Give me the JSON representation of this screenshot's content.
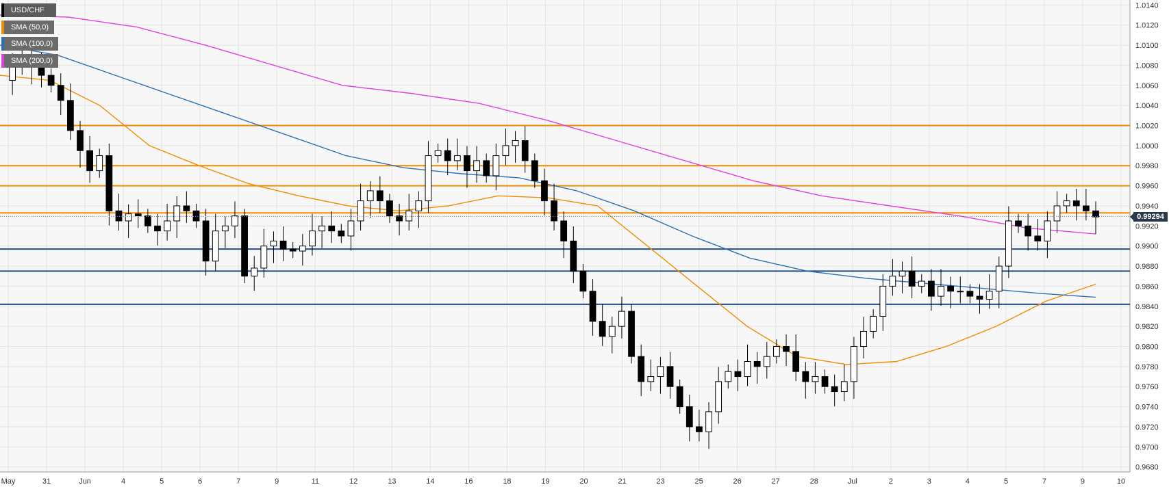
{
  "legend": {
    "symbol": "USD/CHF",
    "indicators": [
      {
        "label": "SMA (50,0)",
        "color": "#f28c00"
      },
      {
        "label": "SMA (100,0)",
        "color": "#2f6fb0"
      },
      {
        "label": "SMA (200,0)",
        "color": "#e040e0"
      }
    ]
  },
  "price_tag": "0.99294",
  "chart_data": {
    "type": "candlestick",
    "symbol": "USD/CHF",
    "ylim": [
      0.9675,
      1.0145
    ],
    "y_ticks": [
      "1.0140",
      "1.0120",
      "1.0100",
      "1.0080",
      "1.0060",
      "1.0040",
      "1.0020",
      "1.0000",
      "0.9980",
      "0.9960",
      "0.9940",
      "0.9920",
      "0.9900",
      "0.9880",
      "0.9860",
      "0.9840",
      "0.9820",
      "0.9800",
      "0.9780",
      "0.9760",
      "0.9740",
      "0.9720",
      "0.9700",
      "0.9680"
    ],
    "x_labels": [
      "May",
      "31",
      "Jun",
      "4",
      "5",
      "6",
      "7",
      "9",
      "11",
      "12",
      "13",
      "14",
      "16",
      "18",
      "19",
      "20",
      "21",
      "23",
      "25",
      "26",
      "27",
      "28",
      "Jul",
      "2",
      "3",
      "4",
      "5",
      "7",
      "9",
      "10"
    ],
    "grid": true,
    "horizontal_levels": {
      "resistance": [
        1.002,
        0.998,
        0.996,
        0.9933
      ],
      "support": [
        0.9897,
        0.9875,
        0.9842
      ],
      "resistance_color": "#f28c00",
      "support_color": "#1f4e8c"
    },
    "current_price": 0.99294,
    "series": [
      {
        "name": "USD/CHF",
        "kind": "ohlc",
        "close_path": [
          1.0065,
          1.008,
          1.0085,
          1.0078,
          1.007,
          1.006,
          1.0045,
          1.0015,
          0.9995,
          0.9975,
          0.999,
          0.9935,
          0.9925,
          0.9932,
          0.993,
          0.992,
          0.9915,
          0.9925,
          0.994,
          0.9935,
          0.9925,
          0.9885,
          0.9915,
          0.992,
          0.993,
          0.987,
          0.9878,
          0.99,
          0.9905,
          0.9897,
          0.9895,
          0.99,
          0.9915,
          0.992,
          0.9915,
          0.991,
          0.9925,
          0.9945,
          0.9955,
          0.9945,
          0.993,
          0.9925,
          0.9935,
          0.9945,
          0.999,
          0.9995,
          0.9985,
          0.999,
          0.9975,
          0.9985,
          0.997,
          0.999,
          1.0,
          1.0005,
          0.9985,
          0.9965,
          0.9945,
          0.9925,
          0.9905,
          0.9875,
          0.9855,
          0.9825,
          0.981,
          0.982,
          0.9835,
          0.979,
          0.9765,
          0.977,
          0.978,
          0.976,
          0.974,
          0.972,
          0.9715,
          0.9735,
          0.9765,
          0.9775,
          0.977,
          0.9785,
          0.978,
          0.979,
          0.98,
          0.9795,
          0.9775,
          0.9765,
          0.977,
          0.976,
          0.9755,
          0.9765,
          0.98,
          0.9815,
          0.983,
          0.986,
          0.987,
          0.9875,
          0.986,
          0.9865,
          0.985,
          0.986,
          0.9855,
          0.9855,
          0.985,
          0.9847,
          0.9855,
          0.988,
          0.9925,
          0.992,
          0.991,
          0.9905,
          0.9925,
          0.994,
          0.9945,
          0.994,
          0.9935,
          0.9929
        ]
      },
      {
        "name": "SMA (50,0)",
        "color": "#f28c00",
        "values": [
          1.007,
          1.0065,
          1.004,
          1.0,
          0.998,
          0.9962,
          0.995,
          0.994,
          0.9935,
          0.994,
          0.995,
          0.9948,
          0.994,
          0.99,
          0.986,
          0.982,
          0.979,
          0.9782,
          0.9785,
          0.98,
          0.982,
          0.9845,
          0.9862
        ]
      },
      {
        "name": "SMA (100,0)",
        "color": "#2f6fb0",
        "values": [
          1.01,
          1.009,
          1.007,
          1.005,
          1.003,
          1.001,
          0.999,
          0.9978,
          0.9972,
          0.9968,
          0.9955,
          0.9935,
          0.991,
          0.9888,
          0.9875,
          0.9868,
          0.9863,
          0.9858,
          0.9853,
          0.9849
        ]
      },
      {
        "name": "SMA (200,0)",
        "color": "#e040e0",
        "values": [
          1.013,
          1.0128,
          1.0118,
          1.01,
          1.008,
          1.006,
          1.0052,
          1.0042,
          1.0025,
          1.0005,
          0.9985,
          0.9965,
          0.995,
          0.994,
          0.993,
          0.9918,
          0.9912
        ]
      }
    ]
  }
}
